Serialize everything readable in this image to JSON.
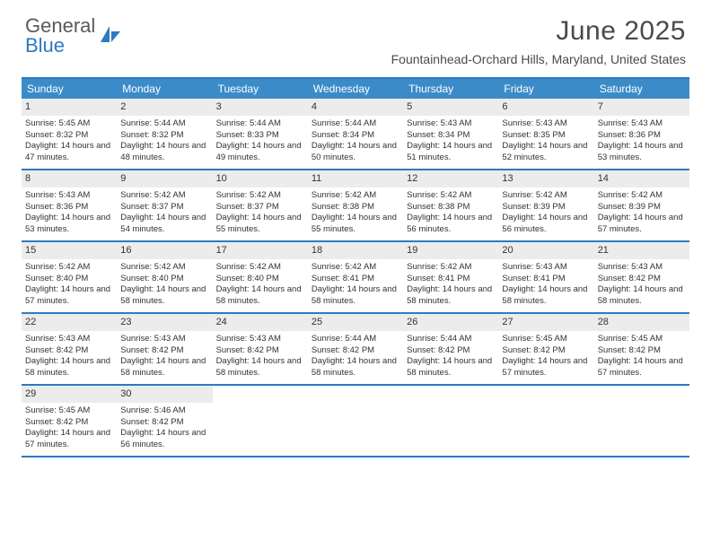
{
  "logo": {
    "text_gray": "General",
    "text_blue": "Blue"
  },
  "title": "June 2025",
  "location": "Fountainhead-Orchard Hills, Maryland, United States",
  "colors": {
    "header_blue": "#3b8bc9",
    "border_blue": "#2f7abf",
    "daynum_bg": "#ececec",
    "text": "#333333",
    "logo_gray": "#5a5a5a"
  },
  "day_headers": [
    "Sunday",
    "Monday",
    "Tuesday",
    "Wednesday",
    "Thursday",
    "Friday",
    "Saturday"
  ],
  "weeks": [
    [
      {
        "n": "1",
        "sunrise": "5:45 AM",
        "sunset": "8:32 PM",
        "daylight": "14 hours and 47 minutes."
      },
      {
        "n": "2",
        "sunrise": "5:44 AM",
        "sunset": "8:32 PM",
        "daylight": "14 hours and 48 minutes."
      },
      {
        "n": "3",
        "sunrise": "5:44 AM",
        "sunset": "8:33 PM",
        "daylight": "14 hours and 49 minutes."
      },
      {
        "n": "4",
        "sunrise": "5:44 AM",
        "sunset": "8:34 PM",
        "daylight": "14 hours and 50 minutes."
      },
      {
        "n": "5",
        "sunrise": "5:43 AM",
        "sunset": "8:34 PM",
        "daylight": "14 hours and 51 minutes."
      },
      {
        "n": "6",
        "sunrise": "5:43 AM",
        "sunset": "8:35 PM",
        "daylight": "14 hours and 52 minutes."
      },
      {
        "n": "7",
        "sunrise": "5:43 AM",
        "sunset": "8:36 PM",
        "daylight": "14 hours and 53 minutes."
      }
    ],
    [
      {
        "n": "8",
        "sunrise": "5:43 AM",
        "sunset": "8:36 PM",
        "daylight": "14 hours and 53 minutes."
      },
      {
        "n": "9",
        "sunrise": "5:42 AM",
        "sunset": "8:37 PM",
        "daylight": "14 hours and 54 minutes."
      },
      {
        "n": "10",
        "sunrise": "5:42 AM",
        "sunset": "8:37 PM",
        "daylight": "14 hours and 55 minutes."
      },
      {
        "n": "11",
        "sunrise": "5:42 AM",
        "sunset": "8:38 PM",
        "daylight": "14 hours and 55 minutes."
      },
      {
        "n": "12",
        "sunrise": "5:42 AM",
        "sunset": "8:38 PM",
        "daylight": "14 hours and 56 minutes."
      },
      {
        "n": "13",
        "sunrise": "5:42 AM",
        "sunset": "8:39 PM",
        "daylight": "14 hours and 56 minutes."
      },
      {
        "n": "14",
        "sunrise": "5:42 AM",
        "sunset": "8:39 PM",
        "daylight": "14 hours and 57 minutes."
      }
    ],
    [
      {
        "n": "15",
        "sunrise": "5:42 AM",
        "sunset": "8:40 PM",
        "daylight": "14 hours and 57 minutes."
      },
      {
        "n": "16",
        "sunrise": "5:42 AM",
        "sunset": "8:40 PM",
        "daylight": "14 hours and 58 minutes."
      },
      {
        "n": "17",
        "sunrise": "5:42 AM",
        "sunset": "8:40 PM",
        "daylight": "14 hours and 58 minutes."
      },
      {
        "n": "18",
        "sunrise": "5:42 AM",
        "sunset": "8:41 PM",
        "daylight": "14 hours and 58 minutes."
      },
      {
        "n": "19",
        "sunrise": "5:42 AM",
        "sunset": "8:41 PM",
        "daylight": "14 hours and 58 minutes."
      },
      {
        "n": "20",
        "sunrise": "5:43 AM",
        "sunset": "8:41 PM",
        "daylight": "14 hours and 58 minutes."
      },
      {
        "n": "21",
        "sunrise": "5:43 AM",
        "sunset": "8:42 PM",
        "daylight": "14 hours and 58 minutes."
      }
    ],
    [
      {
        "n": "22",
        "sunrise": "5:43 AM",
        "sunset": "8:42 PM",
        "daylight": "14 hours and 58 minutes."
      },
      {
        "n": "23",
        "sunrise": "5:43 AM",
        "sunset": "8:42 PM",
        "daylight": "14 hours and 58 minutes."
      },
      {
        "n": "24",
        "sunrise": "5:43 AM",
        "sunset": "8:42 PM",
        "daylight": "14 hours and 58 minutes."
      },
      {
        "n": "25",
        "sunrise": "5:44 AM",
        "sunset": "8:42 PM",
        "daylight": "14 hours and 58 minutes."
      },
      {
        "n": "26",
        "sunrise": "5:44 AM",
        "sunset": "8:42 PM",
        "daylight": "14 hours and 58 minutes."
      },
      {
        "n": "27",
        "sunrise": "5:45 AM",
        "sunset": "8:42 PM",
        "daylight": "14 hours and 57 minutes."
      },
      {
        "n": "28",
        "sunrise": "5:45 AM",
        "sunset": "8:42 PM",
        "daylight": "14 hours and 57 minutes."
      }
    ],
    [
      {
        "n": "29",
        "sunrise": "5:45 AM",
        "sunset": "8:42 PM",
        "daylight": "14 hours and 57 minutes."
      },
      {
        "n": "30",
        "sunrise": "5:46 AM",
        "sunset": "8:42 PM",
        "daylight": "14 hours and 56 minutes."
      },
      null,
      null,
      null,
      null,
      null
    ]
  ],
  "labels": {
    "sunrise": "Sunrise: ",
    "sunset": "Sunset: ",
    "daylight": "Daylight: "
  }
}
